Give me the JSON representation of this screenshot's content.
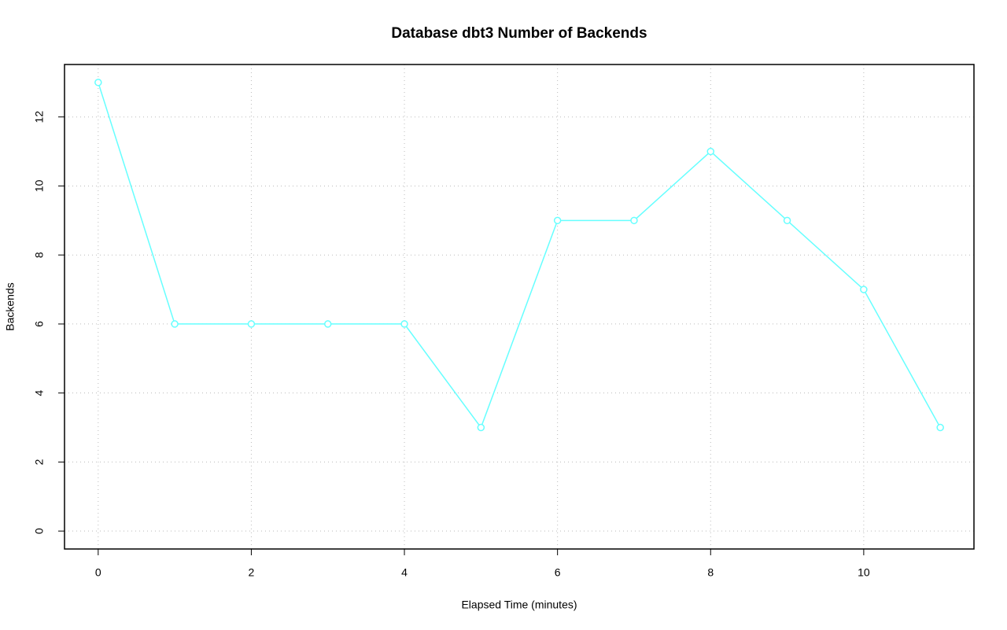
{
  "chart_data": {
    "type": "line",
    "title": "Database dbt3 Number of Backends",
    "x_label": "Elapsed Time (minutes)",
    "y_label": "Backends",
    "x": [
      0,
      1,
      2,
      3,
      4,
      5,
      6,
      7,
      8,
      9,
      10,
      11
    ],
    "series": [
      {
        "name": "Backends",
        "color": "#66ffff",
        "values": [
          13,
          6,
          6,
          6,
          6,
          3,
          9,
          9,
          11,
          9,
          7,
          3
        ]
      }
    ],
    "xlim": [
      -0.44,
      11.44
    ],
    "ylim": [
      -0.52,
      13.52
    ],
    "xticks": [
      0,
      2,
      4,
      6,
      8,
      10
    ],
    "yticks": [
      0,
      2,
      4,
      6,
      8,
      10,
      12
    ],
    "grid": true
  }
}
